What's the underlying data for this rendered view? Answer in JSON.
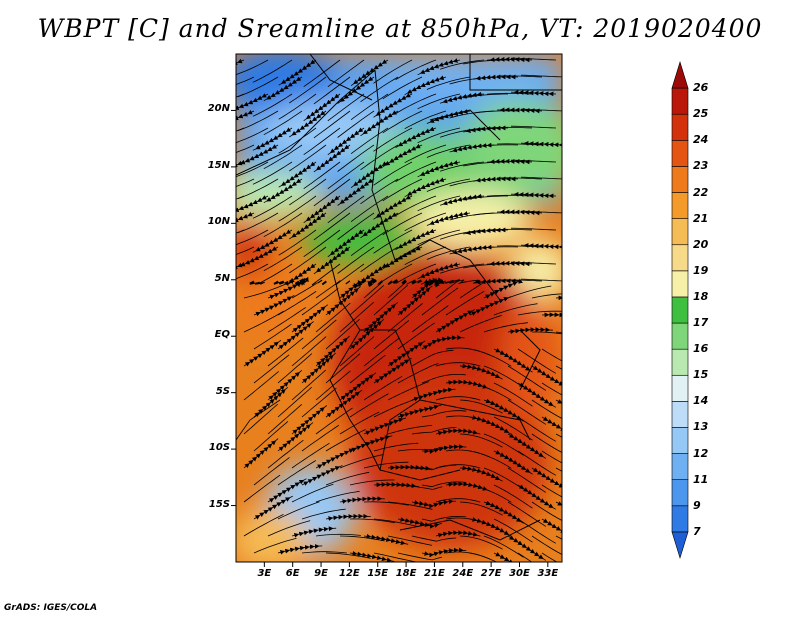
{
  "title": "WBPT [C] and Sreamline at 850hPa, VT: 2019020400",
  "footer": "GrADS: IGES/COLA",
  "map": {
    "latitude_ticks": [
      "20N",
      "15N",
      "10N",
      "5N",
      "EQ",
      "5S",
      "10S",
      "15S"
    ],
    "longitude_ticks": [
      "3E",
      "6E",
      "9E",
      "12E",
      "15E",
      "18E",
      "21E",
      "24E",
      "27E",
      "30E",
      "33E"
    ],
    "lat_values": [
      20,
      15,
      10,
      5,
      0,
      -5,
      -10,
      -15
    ],
    "lon_values": [
      3,
      6,
      9,
      12,
      15,
      18,
      21,
      24,
      27,
      30,
      33
    ],
    "lon_range": [
      0,
      34.5
    ],
    "lat_range": [
      -20,
      25
    ],
    "fields": [
      "wet-bulb potential temperature",
      "streamlines"
    ]
  },
  "colorbar": {
    "levels": [
      "7",
      "9",
      "11",
      "12",
      "13",
      "14",
      "15",
      "16",
      "17",
      "18",
      "19",
      "20",
      "21",
      "22",
      "23",
      "24",
      "25",
      "26"
    ],
    "colors": [
      "#1f5fd6",
      "#2f7ae4",
      "#4d96ee",
      "#6fb0f3",
      "#96c8f6",
      "#bcdcf8",
      "#e2f1f3",
      "#b9e8b0",
      "#7fd67a",
      "#3fbf3f",
      "#f6f0a8",
      "#f7d98a",
      "#f5bb55",
      "#f39a2b",
      "#ee7a1c",
      "#e45412",
      "#d3300c",
      "#bb160a",
      "#9b0a08"
    ]
  }
}
